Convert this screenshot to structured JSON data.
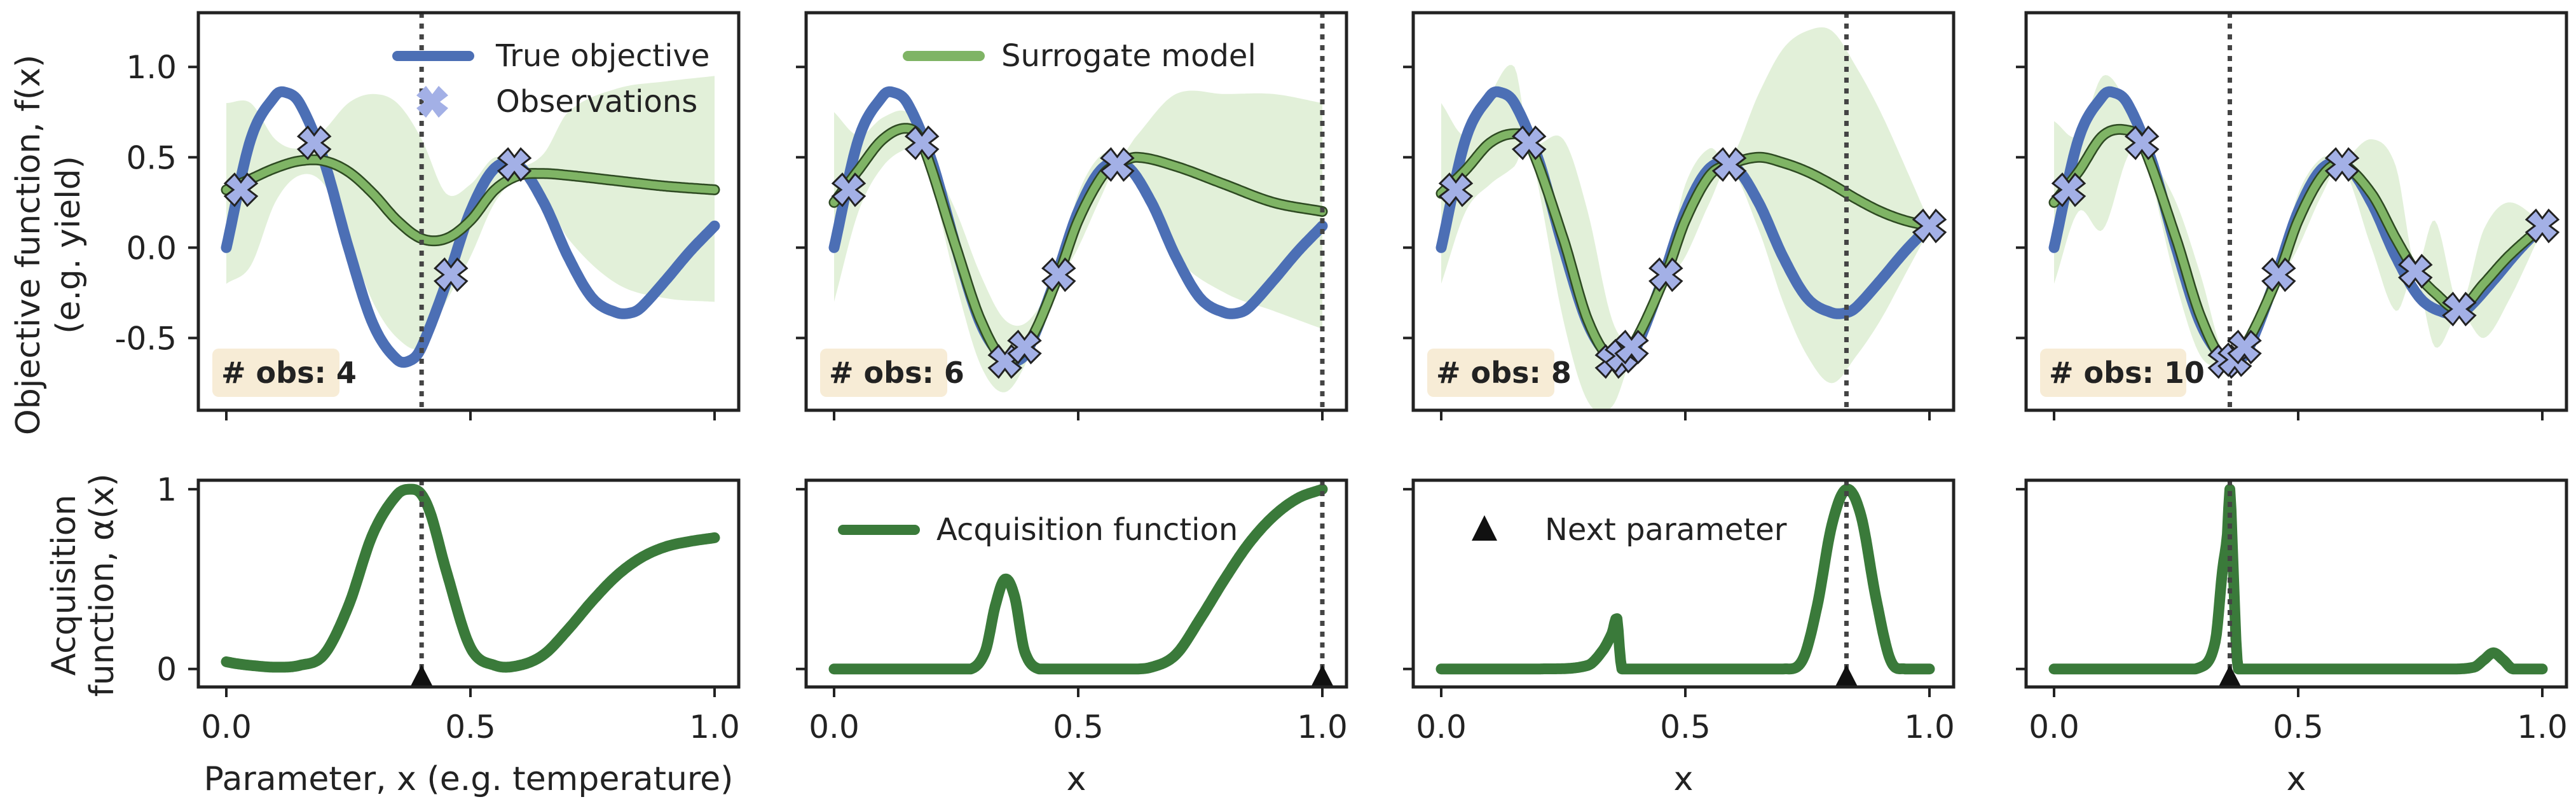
{
  "chart_data": {
    "type": "line",
    "x_range": [
      0,
      1
    ],
    "true_objective": {
      "name": "True objective",
      "color": "#4c6fb5",
      "x": [
        0,
        0.05,
        0.1,
        0.12,
        0.15,
        0.2,
        0.25,
        0.3,
        0.35,
        0.38,
        0.4,
        0.45,
        0.5,
        0.55,
        0.6,
        0.65,
        0.7,
        0.75,
        0.8,
        0.83,
        0.85,
        0.9,
        0.95,
        1.0
      ],
      "y": [
        0,
        0.6,
        0.84,
        0.86,
        0.8,
        0.48,
        0.0,
        -0.42,
        -0.62,
        -0.62,
        -0.55,
        -0.2,
        0.2,
        0.44,
        0.45,
        0.25,
        -0.05,
        -0.28,
        -0.36,
        -0.36,
        -0.33,
        -0.18,
        -0.02,
        0.12
      ]
    },
    "panels": [
      {
        "badge": "# obs: 4",
        "next_x": 0.4,
        "xlabel": "Parameter, x (e.g. temperature)",
        "observations": {
          "x": [
            0.03,
            0.18,
            0.46,
            0.59
          ],
          "y": [
            0.32,
            0.58,
            -0.15,
            0.46
          ]
        },
        "surrogate": {
          "x": [
            0,
            0.05,
            0.1,
            0.15,
            0.2,
            0.25,
            0.3,
            0.35,
            0.4,
            0.45,
            0.5,
            0.55,
            0.6,
            0.65,
            0.7,
            0.8,
            0.9,
            1.0
          ],
          "mean": [
            0.32,
            0.38,
            0.44,
            0.48,
            0.48,
            0.42,
            0.3,
            0.15,
            0.05,
            0.05,
            0.15,
            0.32,
            0.4,
            0.41,
            0.4,
            0.37,
            0.34,
            0.32
          ],
          "lower": [
            -0.2,
            -0.1,
            0.25,
            0.4,
            0.35,
            0.05,
            -0.3,
            -0.5,
            -0.55,
            -0.3,
            -0.05,
            0.25,
            0.38,
            0.3,
            0.05,
            -0.2,
            -0.28,
            -0.3
          ],
          "upper": [
            0.8,
            0.8,
            0.6,
            0.55,
            0.65,
            0.8,
            0.85,
            0.8,
            0.6,
            0.3,
            0.35,
            0.5,
            0.45,
            0.52,
            0.75,
            0.88,
            0.92,
            0.95
          ]
        },
        "acquisition": {
          "x": [
            0,
            0.02,
            0.05,
            0.1,
            0.15,
            0.2,
            0.25,
            0.3,
            0.35,
            0.38,
            0.4,
            0.42,
            0.45,
            0.5,
            0.55,
            0.6,
            0.65,
            0.7,
            0.75,
            0.8,
            0.85,
            0.9,
            0.95,
            1.0
          ],
          "y": [
            0.04,
            0.03,
            0.02,
            0.01,
            0.02,
            0.08,
            0.35,
            0.75,
            0.97,
            1.0,
            0.97,
            0.85,
            0.55,
            0.12,
            0.02,
            0.02,
            0.08,
            0.22,
            0.38,
            0.52,
            0.62,
            0.68,
            0.71,
            0.73
          ]
        }
      },
      {
        "badge": "# obs: 6",
        "next_x": 1.0,
        "xlabel": "x",
        "observations": {
          "x": [
            0.03,
            0.18,
            0.35,
            0.39,
            0.46,
            0.58
          ],
          "y": [
            0.32,
            0.58,
            -0.63,
            -0.55,
            -0.15,
            0.46
          ]
        },
        "surrogate": {
          "x": [
            0,
            0.05,
            0.1,
            0.15,
            0.18,
            0.25,
            0.3,
            0.35,
            0.4,
            0.46,
            0.5,
            0.55,
            0.58,
            0.62,
            0.7,
            0.8,
            0.9,
            1.0
          ],
          "mean": [
            0.25,
            0.43,
            0.6,
            0.66,
            0.58,
            0.0,
            -0.4,
            -0.62,
            -0.52,
            -0.15,
            0.15,
            0.4,
            0.46,
            0.5,
            0.45,
            0.35,
            0.25,
            0.2
          ],
          "lower": [
            -0.3,
            0.2,
            0.45,
            0.55,
            0.55,
            -0.2,
            -0.65,
            -0.8,
            -0.6,
            -0.2,
            0.0,
            0.3,
            0.45,
            0.35,
            -0.05,
            -0.25,
            -0.35,
            -0.45
          ],
          "upper": [
            0.75,
            0.62,
            0.72,
            0.75,
            0.6,
            0.2,
            -0.15,
            -0.4,
            -0.4,
            -0.1,
            0.3,
            0.52,
            0.48,
            0.62,
            0.85,
            0.85,
            0.85,
            0.8
          ]
        },
        "acquisition": {
          "x": [
            0,
            0.1,
            0.2,
            0.28,
            0.31,
            0.33,
            0.35,
            0.37,
            0.39,
            0.42,
            0.5,
            0.6,
            0.65,
            0.7,
            0.75,
            0.8,
            0.85,
            0.9,
            0.95,
            1.0
          ],
          "y": [
            0,
            0,
            0,
            0,
            0.1,
            0.35,
            0.5,
            0.4,
            0.1,
            0,
            0,
            0,
            0.01,
            0.08,
            0.28,
            0.5,
            0.7,
            0.85,
            0.95,
            1.0
          ]
        }
      },
      {
        "badge": "# obs: 8",
        "next_x": 0.83,
        "xlabel": "x",
        "observations": {
          "x": [
            0.03,
            0.18,
            0.35,
            0.37,
            0.39,
            0.46,
            0.59,
            1.0
          ],
          "y": [
            0.32,
            0.58,
            -0.63,
            -0.6,
            -0.55,
            -0.15,
            0.46,
            0.12
          ]
        },
        "surrogate": {
          "x": [
            0,
            0.05,
            0.1,
            0.15,
            0.18,
            0.25,
            0.3,
            0.35,
            0.39,
            0.46,
            0.5,
            0.55,
            0.59,
            0.65,
            0.7,
            0.75,
            0.8,
            0.85,
            0.9,
            0.95,
            1.0
          ],
          "mean": [
            0.3,
            0.43,
            0.58,
            0.63,
            0.58,
            0.05,
            -0.4,
            -0.62,
            -0.55,
            -0.15,
            0.15,
            0.4,
            0.46,
            0.5,
            0.47,
            0.42,
            0.35,
            0.27,
            0.2,
            0.15,
            0.12
          ],
          "lower": [
            -0.2,
            0.2,
            0.35,
            0.45,
            0.55,
            -0.4,
            -0.85,
            -0.88,
            -0.6,
            -0.2,
            -0.05,
            0.25,
            0.44,
            0.1,
            -0.3,
            -0.6,
            -0.75,
            -0.6,
            -0.4,
            -0.15,
            0.1
          ],
          "upper": [
            0.8,
            0.62,
            0.85,
            1.0,
            0.6,
            0.6,
            0.2,
            -0.4,
            -0.5,
            -0.1,
            0.35,
            0.55,
            0.48,
            0.85,
            1.1,
            1.2,
            1.2,
            1.0,
            0.75,
            0.45,
            0.14
          ]
        },
        "acquisition": {
          "x": [
            0,
            0.1,
            0.2,
            0.3,
            0.33,
            0.35,
            0.36,
            0.365,
            0.37,
            0.4,
            0.6,
            0.7,
            0.74,
            0.77,
            0.8,
            0.83,
            0.86,
            0.89,
            0.92,
            0.95,
            1.0
          ],
          "y": [
            0,
            0,
            0,
            0.02,
            0.1,
            0.2,
            0.28,
            0.12,
            0,
            0,
            0,
            0,
            0.05,
            0.35,
            0.8,
            1.0,
            0.85,
            0.4,
            0.05,
            0,
            0
          ]
        }
      },
      {
        "badge": "# obs: 10",
        "next_x": 0.36,
        "xlabel": "x",
        "observations": {
          "x": [
            0.03,
            0.18,
            0.35,
            0.37,
            0.39,
            0.46,
            0.59,
            0.74,
            0.83,
            1.0
          ],
          "y": [
            0.32,
            0.58,
            -0.63,
            -0.62,
            -0.55,
            -0.15,
            0.46,
            -0.13,
            -0.34,
            0.12
          ]
        },
        "surrogate": {
          "x": [
            0,
            0.05,
            0.1,
            0.15,
            0.18,
            0.25,
            0.3,
            0.35,
            0.39,
            0.46,
            0.5,
            0.55,
            0.59,
            0.65,
            0.7,
            0.74,
            0.78,
            0.83,
            0.88,
            0.93,
            1.0
          ],
          "mean": [
            0.25,
            0.42,
            0.62,
            0.65,
            0.58,
            0.05,
            -0.38,
            -0.63,
            -0.55,
            -0.15,
            0.15,
            0.4,
            0.46,
            0.3,
            0.05,
            -0.13,
            -0.25,
            -0.34,
            -0.2,
            -0.05,
            0.12
          ],
          "lower": [
            -0.2,
            0.2,
            0.1,
            0.5,
            0.55,
            -0.2,
            -0.6,
            -0.65,
            -0.6,
            -0.2,
            0.0,
            0.3,
            0.45,
            0.0,
            -0.35,
            -0.15,
            -0.55,
            -0.36,
            -0.5,
            -0.3,
            0.1
          ],
          "upper": [
            0.7,
            0.62,
            0.95,
            0.8,
            0.6,
            0.25,
            -0.15,
            -0.6,
            -0.5,
            -0.1,
            0.3,
            0.5,
            0.48,
            0.6,
            0.45,
            -0.1,
            0.15,
            -0.32,
            0.1,
            0.25,
            0.14
          ]
        },
        "acquisition": {
          "x": [
            0,
            0.1,
            0.2,
            0.3,
            0.33,
            0.345,
            0.355,
            0.36,
            0.365,
            0.375,
            0.39,
            0.5,
            0.8,
            0.86,
            0.88,
            0.9,
            0.92,
            0.94,
            1.0
          ],
          "y": [
            0,
            0,
            0,
            0.01,
            0.15,
            0.55,
            0.75,
            1.0,
            0.7,
            0.05,
            0,
            0,
            0,
            0.01,
            0.05,
            0.09,
            0.05,
            0,
            0
          ]
        }
      }
    ],
    "top_yticks": [
      -0.5,
      0.0,
      0.5,
      1.0
    ],
    "top_ylim": [
      -0.9,
      1.3
    ],
    "bottom_yticks": [
      0,
      1
    ],
    "bottom_ylim": [
      -0.1,
      1.05
    ],
    "xticks": [
      0.0,
      0.5,
      1.0
    ],
    "ylabel_top": "Objective function, f(x)",
    "ylabel_top_sub": "(e.g. yield)",
    "ylabel_bottom": "Acquisition",
    "ylabel_bottom_sub": "function, α(x)",
    "legends": {
      "true_objective": "True objective",
      "observations": "Observations",
      "surrogate": "Surrogate model",
      "acquisition": "Acquisition function",
      "next_parameter": "Next parameter"
    },
    "colors": {
      "true_objective": "#4c6fb5",
      "surrogate": "#7fb465",
      "surrogate_band": "#d8ebcc",
      "acquisition": "#3a7a3a",
      "observation_fill": "#a3b0e6",
      "badge_bg": "#f7ecd6",
      "next_marker": "#111111",
      "vline": "#444444"
    }
  }
}
